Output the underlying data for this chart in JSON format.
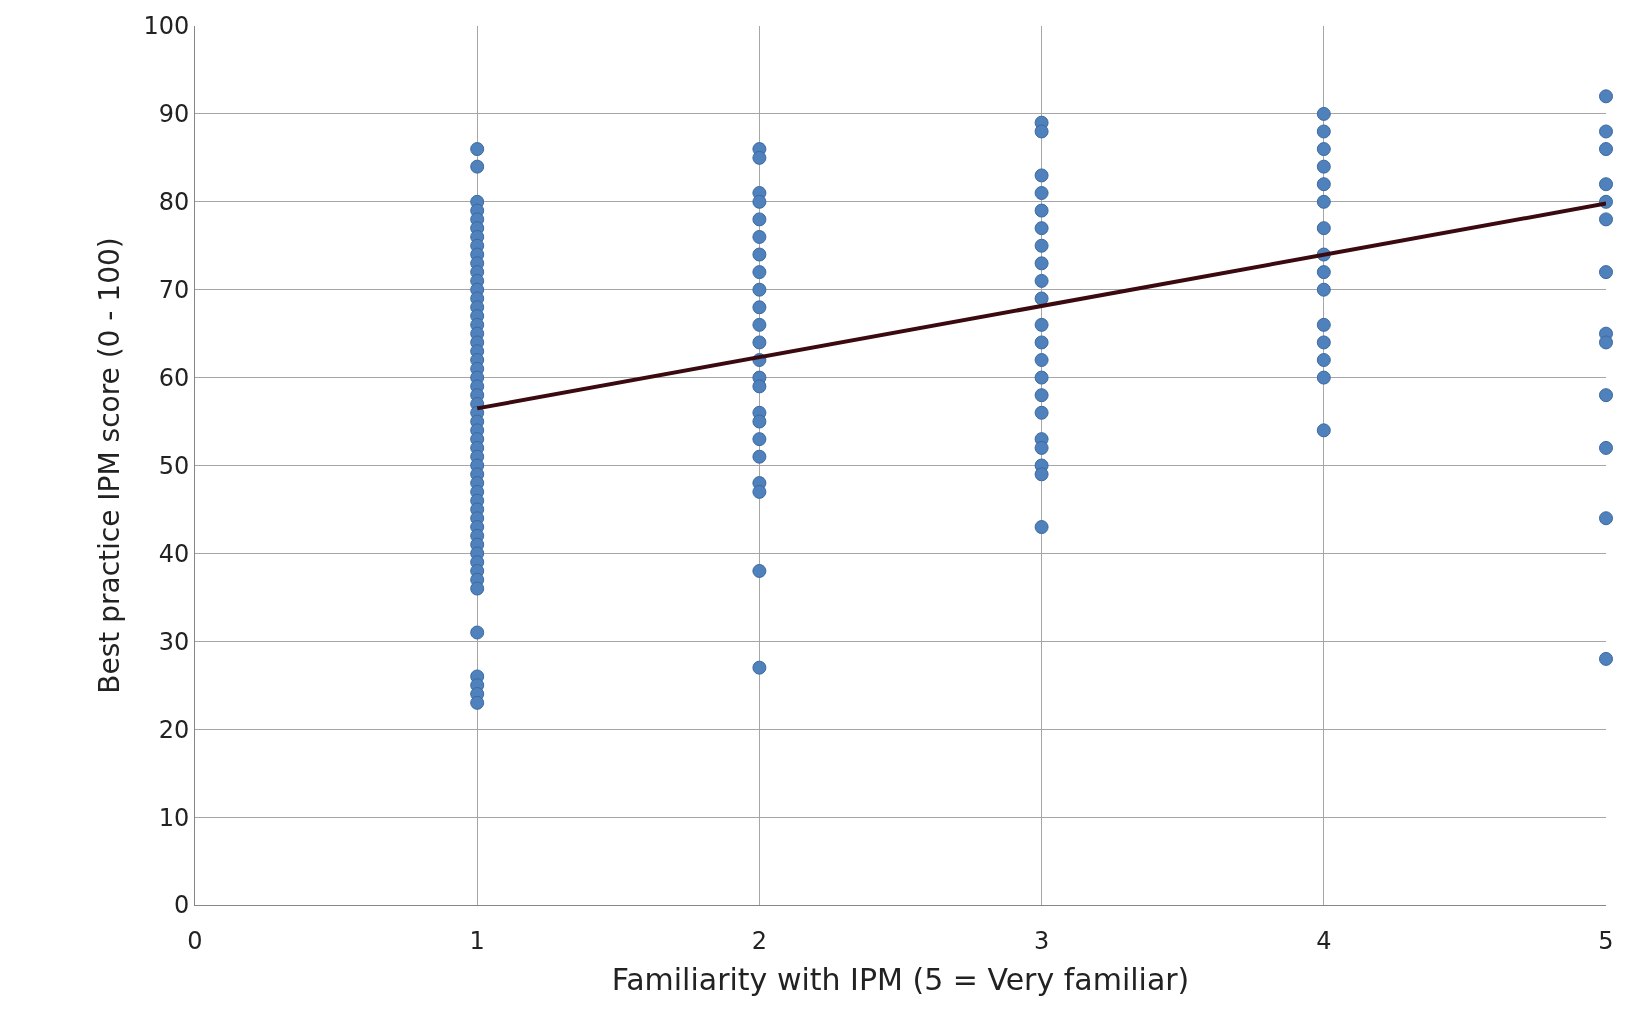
{
  "chart_data": {
    "type": "scatter",
    "xlabel": "Familiarity with IPM (5 = Very familiar)",
    "ylabel": "Best practice IPM score (0 - 100)",
    "xlim": [
      0,
      5
    ],
    "ylim": [
      0,
      100
    ],
    "xticks": [
      0,
      1,
      2,
      3,
      4,
      5
    ],
    "yticks": [
      0,
      10,
      20,
      30,
      40,
      50,
      60,
      70,
      80,
      90,
      100
    ],
    "grid": true,
    "marker": "circle",
    "series": [
      {
        "color": "#4f81bd",
        "x": [
          1,
          1,
          1,
          1,
          1,
          1,
          1,
          1,
          1,
          1,
          1,
          1,
          1,
          1,
          1,
          1,
          1,
          1,
          1,
          1,
          1,
          1,
          1,
          1,
          1,
          1,
          1,
          1,
          1,
          1,
          1,
          1,
          1,
          1,
          1,
          1,
          1,
          1,
          1,
          1,
          1,
          1,
          1,
          1,
          1,
          1,
          1,
          1,
          1,
          1,
          1,
          1,
          2,
          2,
          2,
          2,
          2,
          2,
          2,
          2,
          2,
          2,
          2,
          2,
          2,
          2,
          2,
          2,
          2,
          2,
          2,
          2,
          2,
          2,
          2,
          3,
          3,
          3,
          3,
          3,
          3,
          3,
          3,
          3,
          3,
          3,
          3,
          3,
          3,
          3,
          3,
          3,
          3,
          3,
          3,
          3,
          4,
          4,
          4,
          4,
          4,
          4,
          4,
          4,
          4,
          4,
          4,
          4,
          4,
          4,
          4,
          5,
          5,
          5,
          5,
          5,
          5,
          5,
          5,
          5,
          5,
          5,
          5,
          5
        ],
        "values": [
          86,
          84,
          80,
          79,
          78,
          77,
          76,
          75,
          74,
          73,
          72,
          71,
          70,
          69,
          68,
          67,
          66,
          65,
          64,
          63,
          62,
          61,
          60,
          59,
          58,
          57,
          56,
          55,
          54,
          53,
          52,
          51,
          50,
          49,
          48,
          47,
          46,
          45,
          44,
          43,
          42,
          41,
          40,
          39,
          38,
          37,
          36,
          31,
          26,
          25,
          24,
          23,
          86,
          85,
          81,
          80,
          78,
          76,
          74,
          72,
          70,
          68,
          66,
          64,
          62,
          60,
          59,
          56,
          55,
          53,
          51,
          48,
          47,
          38,
          27,
          89,
          88,
          83,
          81,
          79,
          77,
          75,
          73,
          71,
          69,
          66,
          64,
          62,
          60,
          58,
          56,
          53,
          52,
          50,
          49,
          43,
          90,
          88,
          86,
          84,
          82,
          80,
          77,
          74,
          72,
          70,
          66,
          64,
          62,
          60,
          54,
          92,
          88,
          86,
          82,
          80,
          78,
          72,
          65,
          64,
          58,
          52,
          44,
          28
        ]
      },
      {
        "type": "line",
        "color": "#3a0a10",
        "x": [
          1,
          5
        ],
        "values": [
          56.5,
          79.8
        ],
        "marker": "none"
      }
    ]
  }
}
